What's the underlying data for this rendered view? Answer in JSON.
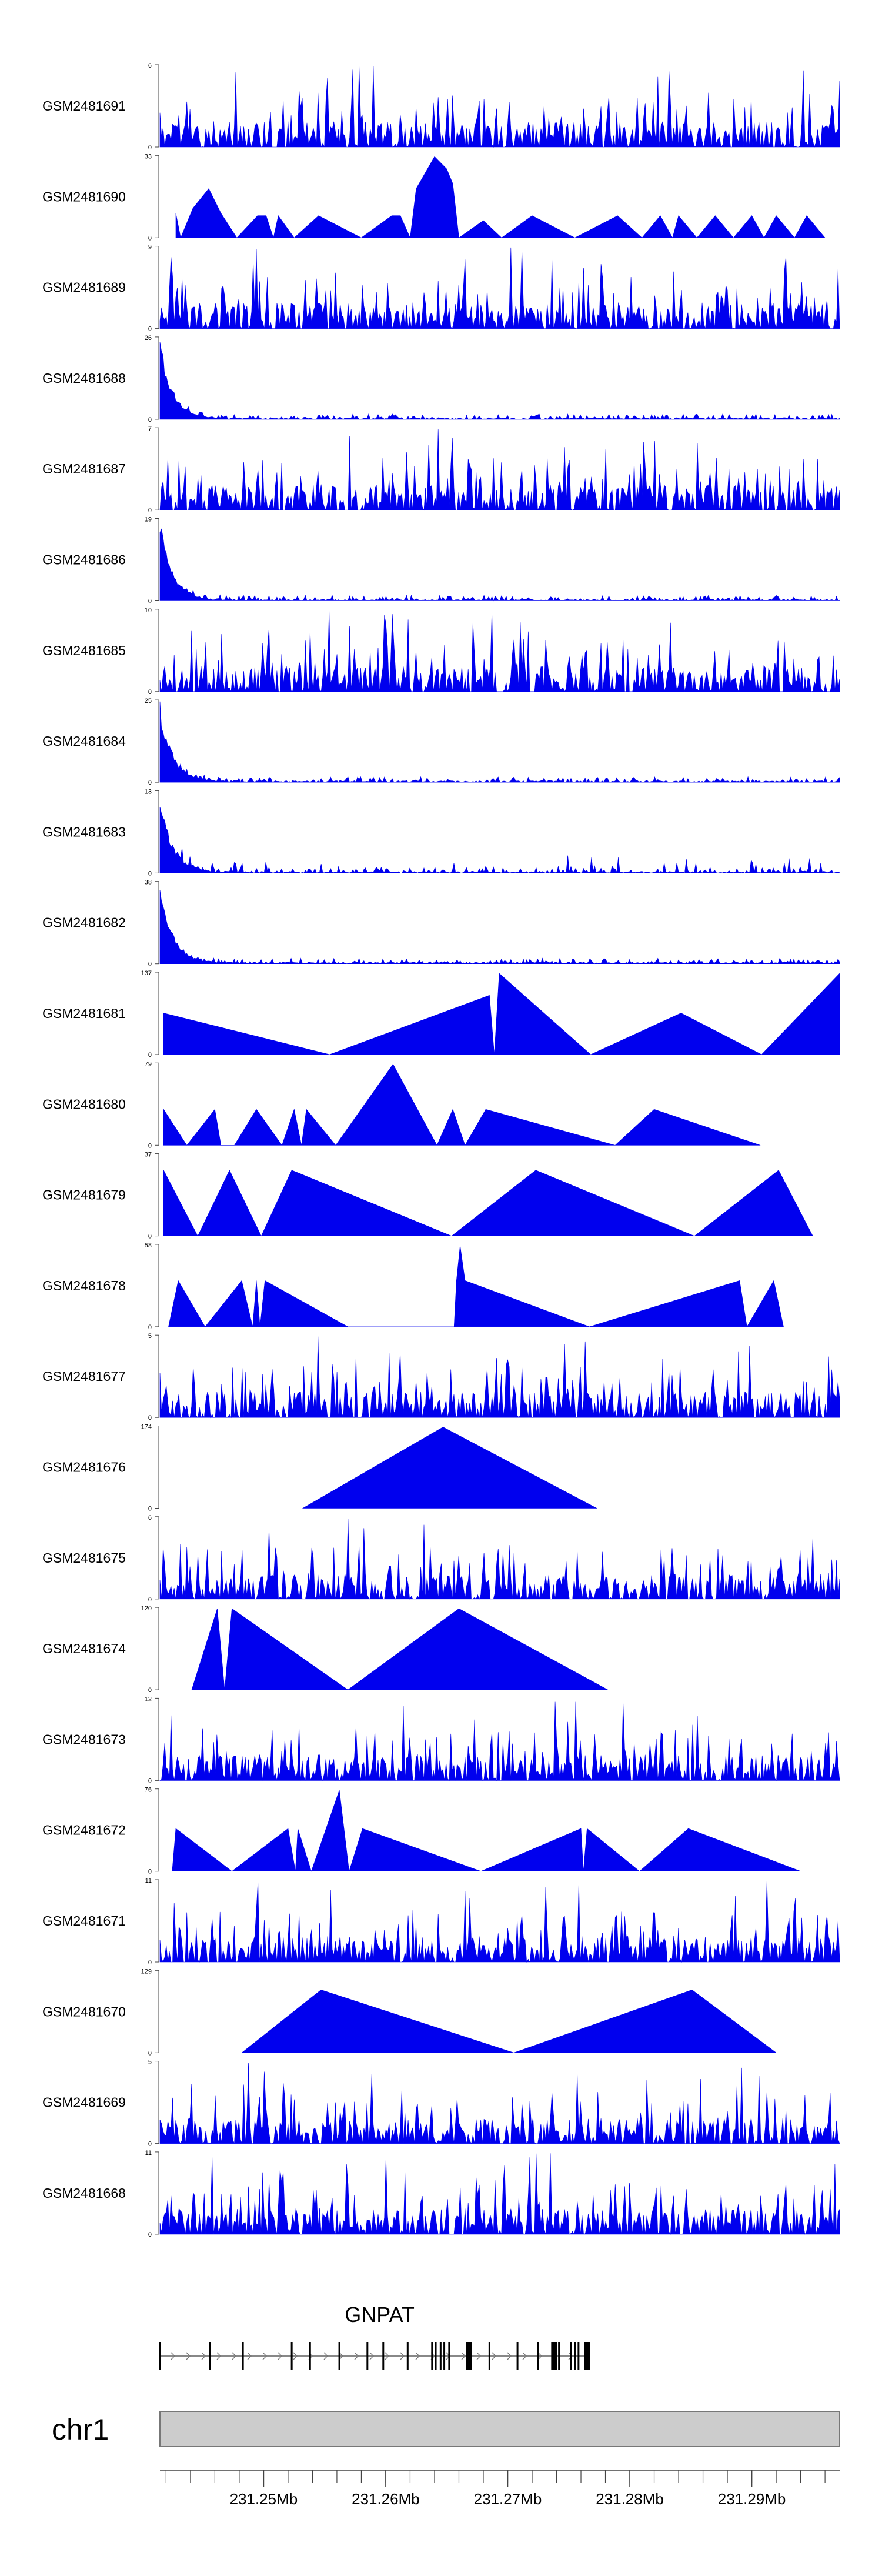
{
  "chart_data": {
    "type": "area",
    "title": "",
    "chromosome": "chr1",
    "gene": "GNPAT",
    "xlim_mb": [
      231.2415,
      231.2972
    ],
    "axis_ticks_mb": [
      231.25,
      231.26,
      231.27,
      231.28,
      231.29
    ],
    "axis_tick_labels": [
      "231.25Mb",
      "231.26Mb",
      "231.27Mb",
      "231.28Mb",
      "231.29Mb"
    ],
    "gene_exons_mb": [
      231.2415,
      231.2456,
      231.2483,
      231.2523,
      231.2538,
      231.2562,
      231.2585,
      231.2598,
      231.2618,
      231.2638,
      231.2641,
      231.2645,
      231.2648,
      231.2652,
      231.2668,
      231.2685,
      231.2708,
      231.2725,
      231.2738,
      231.2742,
      231.2752,
      231.2755,
      231.2758,
      231.2765
    ],
    "gene_thick_exons_mb": [
      231.2668,
      231.2738,
      231.2765
    ],
    "gene_range_mb": [
      231.2415,
      231.2767
    ],
    "tracks": [
      {
        "name": "GSM2481691",
        "ymax": 6,
        "pattern": "dense"
      },
      {
        "name": "GSM2481690",
        "ymax": 33,
        "pattern": "triangles",
        "peaks": [
          [
            231.2428,
            10
          ],
          [
            231.2442,
            12
          ],
          [
            231.2455,
            20
          ],
          [
            231.2465,
            10
          ],
          [
            231.2495,
            9
          ],
          [
            231.2502,
            9
          ],
          [
            231.2512,
            9
          ],
          [
            231.2545,
            9
          ],
          [
            231.2605,
            9
          ],
          [
            231.2612,
            9
          ],
          [
            231.2625,
            20
          ],
          [
            231.264,
            33
          ],
          [
            231.265,
            28
          ],
          [
            231.2655,
            22
          ],
          [
            231.268,
            7
          ],
          [
            231.272,
            9
          ],
          [
            231.279,
            9
          ],
          [
            231.2825,
            9
          ],
          [
            231.284,
            9
          ],
          [
            231.287,
            9
          ],
          [
            231.29,
            9
          ],
          [
            231.292,
            9
          ],
          [
            231.2945,
            9
          ]
        ],
        "zeros": [
          231.2432,
          231.2478,
          231.2508,
          231.2525,
          231.258,
          231.262,
          231.266,
          231.2695,
          231.2755,
          231.281,
          231.2835,
          231.2855,
          231.2885,
          231.291,
          231.2935,
          231.296
        ]
      },
      {
        "name": "GSM2481689",
        "ymax": 9,
        "pattern": "dense"
      },
      {
        "name": "GSM2481688",
        "ymax": 26,
        "pattern": "decay"
      },
      {
        "name": "GSM2481687",
        "ymax": 7,
        "pattern": "dense"
      },
      {
        "name": "GSM2481686",
        "ymax": 19,
        "pattern": "decay"
      },
      {
        "name": "GSM2481685",
        "ymax": 10,
        "pattern": "dense"
      },
      {
        "name": "GSM2481684",
        "ymax": 25,
        "pattern": "decay"
      },
      {
        "name": "GSM2481683",
        "ymax": 13,
        "pattern": "decay"
      },
      {
        "name": "GSM2481682",
        "ymax": 38,
        "pattern": "decay"
      },
      {
        "name": "GSM2481681",
        "ymax": 137,
        "pattern": "triangles",
        "peaks": [
          [
            231.2418,
            70
          ],
          [
            231.2685,
            100
          ],
          [
            231.2693,
            137
          ],
          [
            231.2842,
            70
          ],
          [
            231.2972,
            137
          ]
        ],
        "zeros": [
          231.2554,
          231.2689,
          231.2768,
          231.2908
        ]
      },
      {
        "name": "GSM2481680",
        "ymax": 79,
        "pattern": "triangles",
        "peaks": [
          [
            231.2418,
            35
          ],
          [
            231.246,
            35
          ],
          [
            231.2494,
            35
          ],
          [
            231.2525,
            35
          ],
          [
            231.2535,
            35
          ],
          [
            231.2606,
            79
          ],
          [
            231.2655,
            35
          ],
          [
            231.2682,
            35
          ],
          [
            231.282,
            35
          ]
        ],
        "zeros": [
          231.2437,
          231.2465,
          231.2476,
          231.2515,
          231.2531,
          231.2559,
          231.2642,
          231.2665,
          231.2788,
          231.2907
        ]
      },
      {
        "name": "GSM2481679",
        "ymax": 37,
        "pattern": "triangles",
        "peaks": [
          [
            231.2418,
            30
          ],
          [
            231.2472,
            30
          ],
          [
            231.2523,
            30
          ],
          [
            231.2723,
            30
          ],
          [
            231.2922,
            30
          ]
        ],
        "zeros": [
          231.2446,
          231.2498,
          231.2654,
          231.2853,
          231.295
        ]
      },
      {
        "name": "GSM2481678",
        "ymax": 58,
        "pattern": "triangles",
        "peaks": [
          [
            231.243,
            33
          ],
          [
            231.2482,
            33
          ],
          [
            231.2494,
            33
          ],
          [
            231.2501,
            33
          ],
          [
            231.2658,
            33
          ],
          [
            231.2661,
            58
          ],
          [
            231.2665,
            33
          ],
          [
            231.289,
            33
          ],
          [
            231.2918,
            33
          ]
        ],
        "zeros": [
          231.2422,
          231.2452,
          231.2491,
          231.2497,
          231.2569,
          231.2656,
          231.2767,
          231.2896,
          231.2926
        ]
      },
      {
        "name": "GSM2481677",
        "ymax": 5,
        "pattern": "dense"
      },
      {
        "name": "GSM2481676",
        "ymax": 174,
        "pattern": "triangles",
        "peaks": [
          [
            231.2647,
            174
          ]
        ],
        "zeros": [
          231.2532,
          231.2773
        ]
      },
      {
        "name": "GSM2481675",
        "ymax": 6,
        "pattern": "dense"
      },
      {
        "name": "GSM2481674",
        "ymax": 120,
        "pattern": "triangles",
        "peaks": [
          [
            231.2462,
            120
          ],
          [
            231.2474,
            120
          ],
          [
            231.266,
            120
          ]
        ],
        "zeros": [
          231.2441,
          231.2468,
          231.2569,
          231.2782
        ]
      },
      {
        "name": "GSM2481673",
        "ymax": 12,
        "pattern": "dense"
      },
      {
        "name": "GSM2481672",
        "ymax": 76,
        "pattern": "triangles",
        "peaks": [
          [
            231.2428,
            40
          ],
          [
            231.252,
            40
          ],
          [
            231.2528,
            40
          ],
          [
            231.2562,
            76
          ],
          [
            231.2581,
            40
          ],
          [
            231.276,
            40
          ],
          [
            231.2765,
            40
          ],
          [
            231.2848,
            40
          ]
        ],
        "zeros": [
          231.2425,
          231.2474,
          231.2526,
          231.2539,
          231.257,
          231.2678,
          231.2762,
          231.2808,
          231.294
        ]
      },
      {
        "name": "GSM2481671",
        "ymax": 11,
        "pattern": "dense"
      },
      {
        "name": "GSM2481670",
        "ymax": 129,
        "pattern": "triangles",
        "peaks": [
          [
            231.2547,
            100
          ],
          [
            231.2851,
            100
          ]
        ],
        "zeros": [
          231.2482,
          231.2705,
          231.292
        ]
      },
      {
        "name": "GSM2481669",
        "ymax": 5,
        "pattern": "dense"
      },
      {
        "name": "GSM2481668",
        "ymax": 11,
        "pattern": "dense"
      }
    ]
  },
  "style": {
    "fill": "#0000ee",
    "axis_color": "#444444",
    "ideogram_fill": "#cccccc",
    "ideogram_stroke": "#777777"
  }
}
